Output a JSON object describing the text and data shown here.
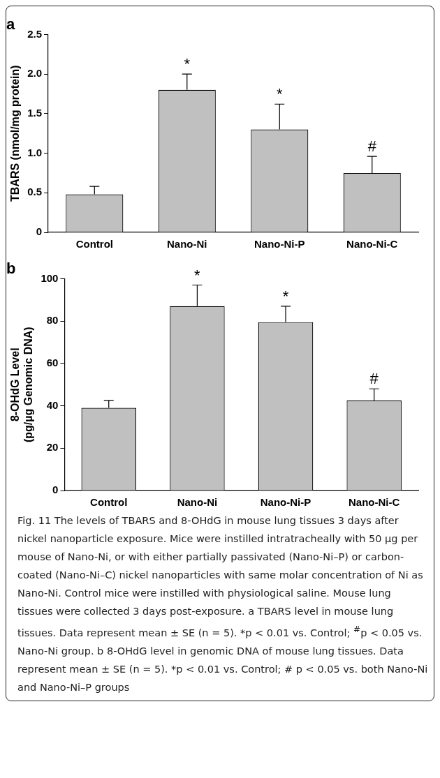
{
  "chart_data": [
    {
      "type": "bar",
      "title": "a",
      "ylabel": "TBARS (nmol/mg protein)",
      "categories": [
        "Control",
        "Nano-Ni",
        "Nano-Ni-P",
        "Nano-Ni-C"
      ],
      "values": [
        0.48,
        1.8,
        1.3,
        0.75
      ],
      "color": "#c0c0c0",
      "errors": [
        [
          0.48,
          0.58
        ],
        [
          1.8,
          2.0
        ],
        [
          1.3,
          1.62
        ],
        [
          0.75,
          0.96
        ]
      ],
      "ylim": [
        0,
        2.5
      ],
      "yticks": [
        {
          "value": 0,
          "label": "0"
        },
        {
          "value": 0.5,
          "label": "0.5"
        },
        {
          "value": 1,
          "label": "1.0"
        },
        {
          "value": 1.5,
          "label": "1.5"
        },
        {
          "value": 2,
          "label": "2.0"
        },
        {
          "value": 2.5,
          "label": "2.5"
        }
      ],
      "annotations": [
        {
          "text": "*",
          "x": "Nano-Ni",
          "y": 2.0
        },
        {
          "text": "*",
          "x": "Nano-Ni-P",
          "y": 1.62
        },
        {
          "text": "#",
          "x": "Nano-Ni-C",
          "y": 0.96
        }
      ]
    },
    {
      "type": "bar",
      "title": "b",
      "ylabel": "8-OHdG Level\n(pg/µg Genomic DNA)",
      "categories": [
        "Control",
        "Nano-Ni",
        "Nano-Ni-P",
        "Nano-Ni-C"
      ],
      "values": [
        39,
        87,
        79.5,
        42.5
      ],
      "color": "#c0c0c0",
      "errors": [
        [
          39,
          42.5
        ],
        [
          87,
          97
        ],
        [
          79.5,
          87
        ],
        [
          42.5,
          48
        ]
      ],
      "ylim": [
        0,
        100
      ],
      "yticks": [
        0,
        20,
        40,
        60,
        80,
        100
      ],
      "annotations": [
        {
          "text": "*",
          "x": "Nano-Ni",
          "y": 97
        },
        {
          "text": "*",
          "x": "Nano-Ni-P",
          "y": 87
        },
        {
          "text": "#",
          "x": "Nano-Ni-C",
          "y": 48
        },
        "Fig. 11  The levels of TBARS and 8-OHdG in mouse lung tissues 3 days after nickel nanoparticle exposure. Mice were instilled intratracheally with 50 µg per mouse of Nano-Ni, or with either partially passivated (Nano-Ni–P) or carbon-coated (Nano-Ni–C) nickel nanoparticles with same molar concentration of Ni as Nano-Ni. Control mice were instilled with physiological saline. Mouse lung tissues were collected 3 days post-exposure. a TBARS level in mouse lung tissues. Data represent mean ± SE (n = 5). *p < 0.01 vs. Control; $^{#}$p < 0.05 vs. Nano-Ni group. b 8-OHdG level in genomic DNA of mouse lung tissues. Data represent mean ± SE (n = 5). *p < 0.01 vs. Control; # p < 0.05 vs. both Nano-Ni and Nano-Ni–P groups"
      ]
    }
  ]
}
